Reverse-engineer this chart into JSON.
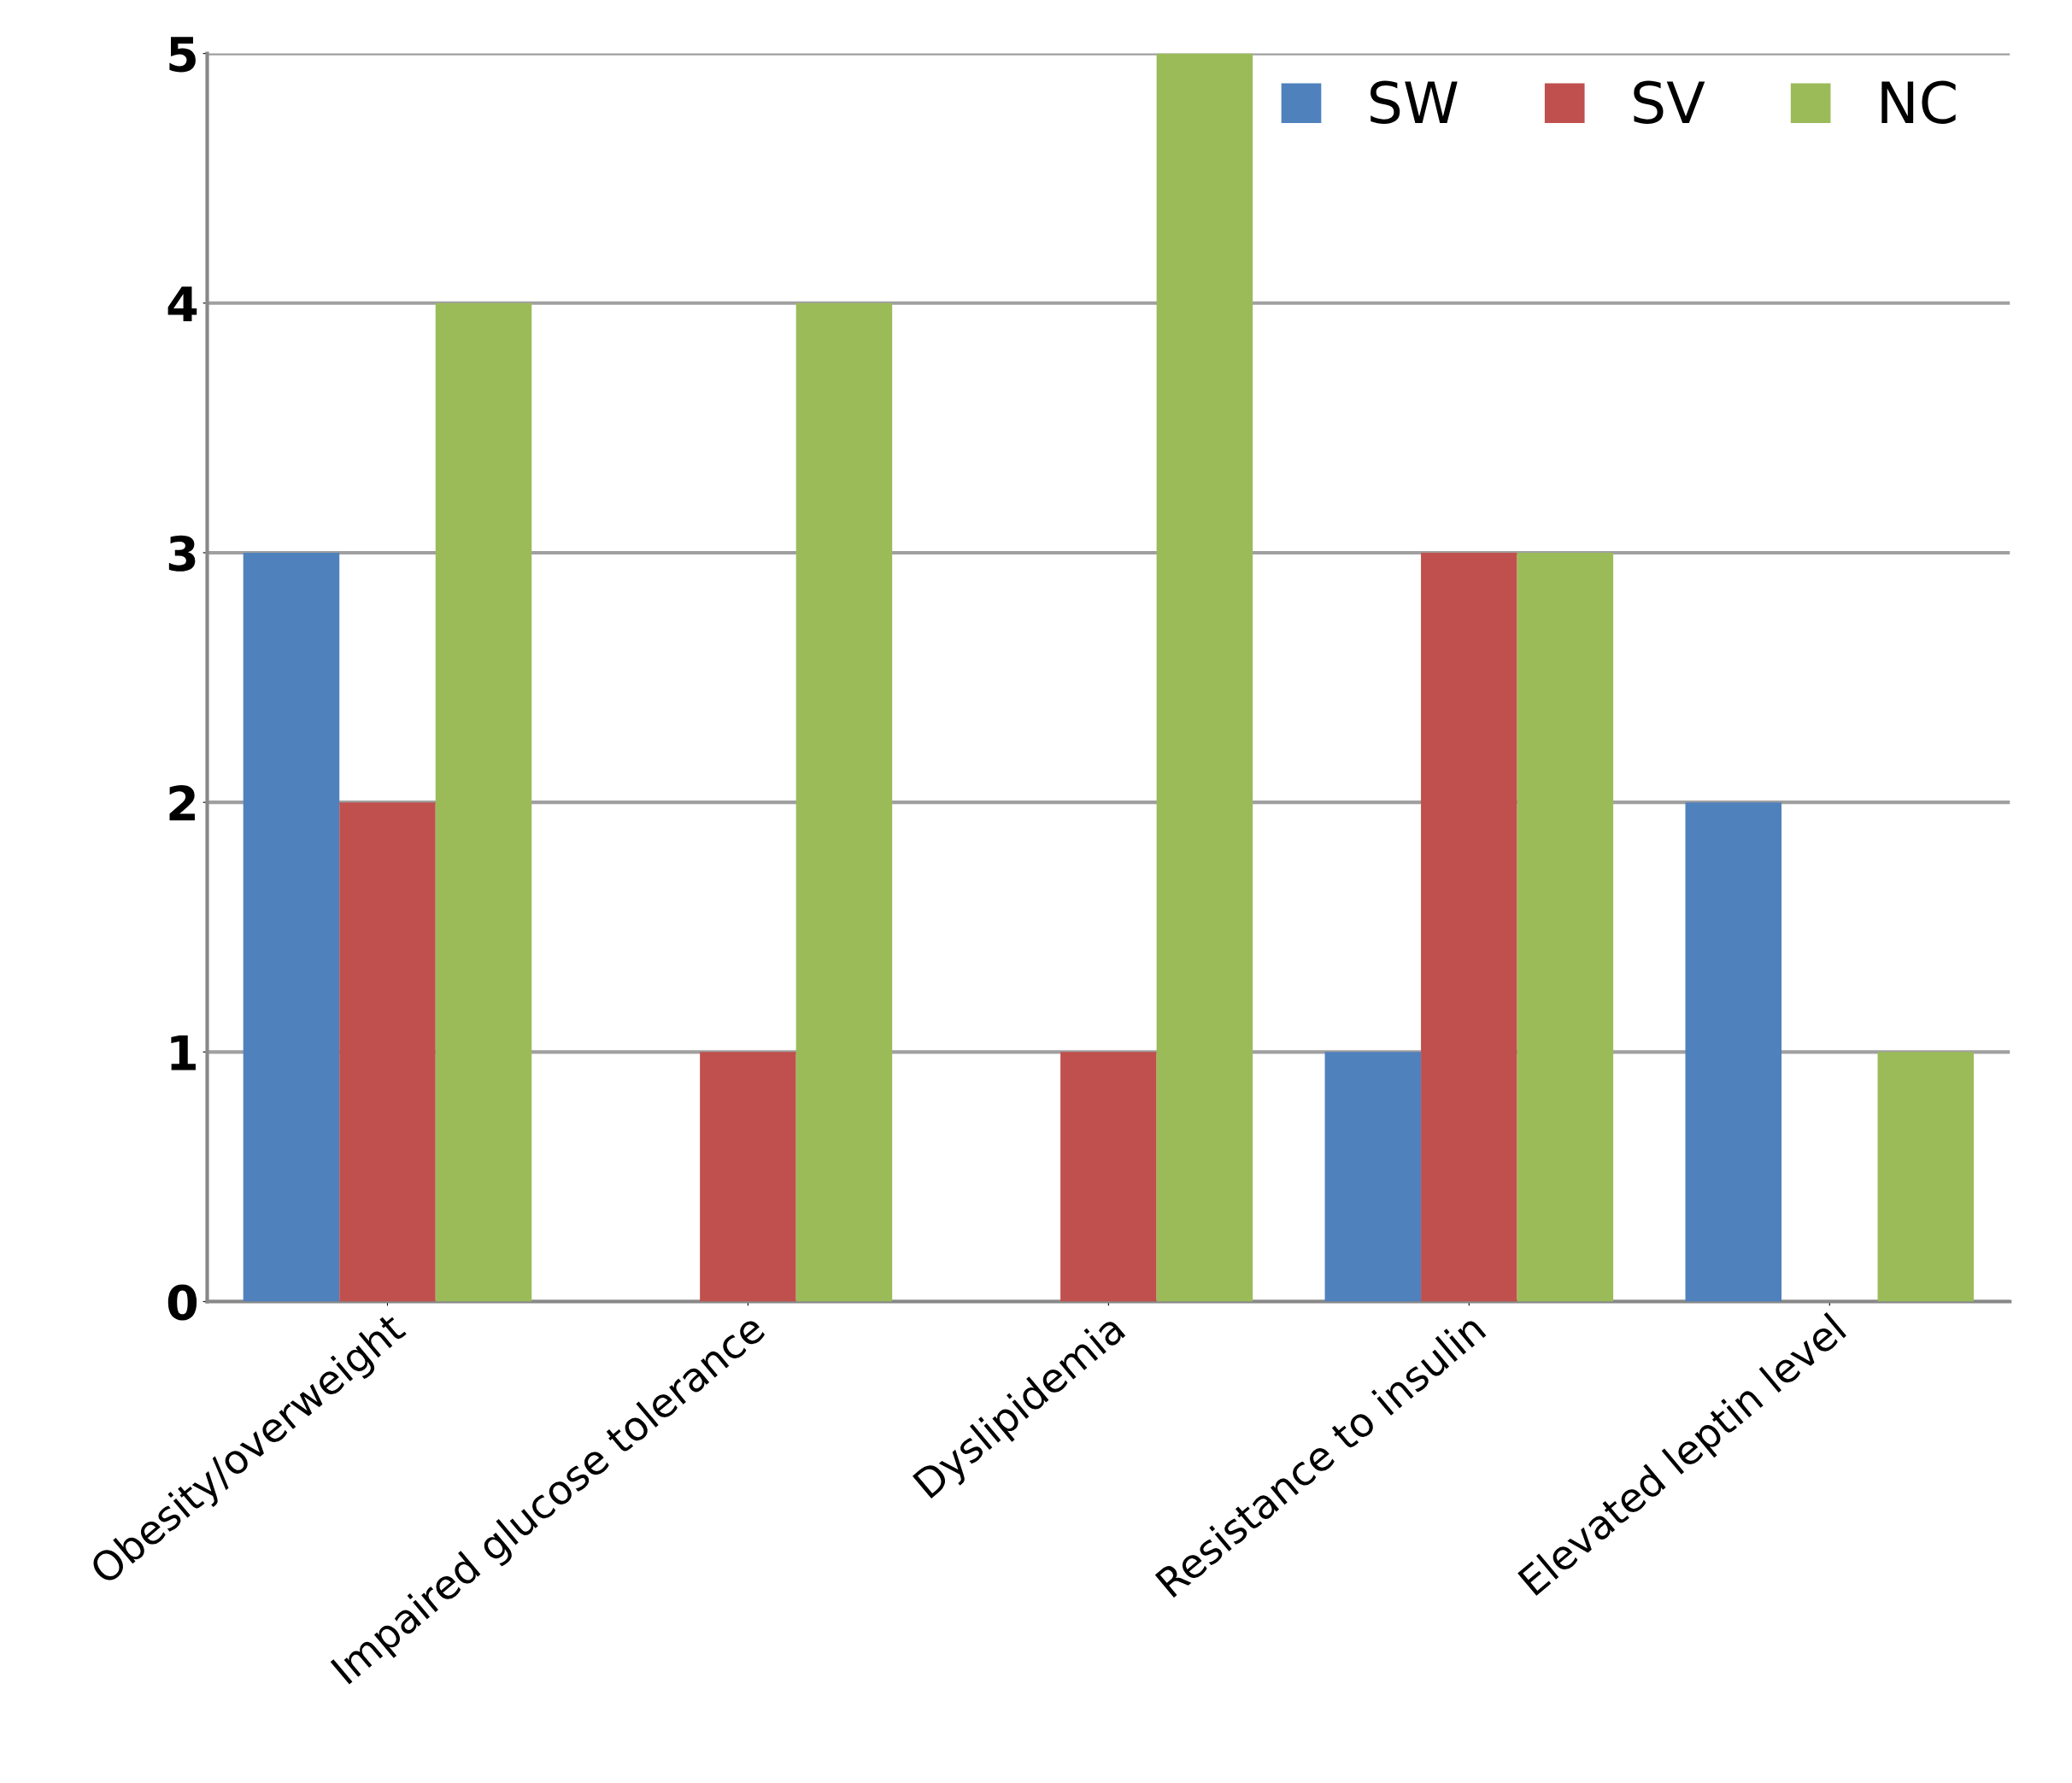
{
  "chart_data": {
    "type": "bar",
    "categories": [
      "Obesity/overweight",
      "Impaired glucose tolerance",
      "Dyslipidemia",
      "Resistance to insulin",
      "Elevated leptin level"
    ],
    "series": [
      {
        "name": "SW",
        "color": "#4f81bd",
        "values": [
          3,
          0,
          0,
          1,
          2
        ]
      },
      {
        "name": "SV",
        "color": "#c0504d",
        "values": [
          2,
          1,
          1,
          3,
          0
        ]
      },
      {
        "name": "NC",
        "color": "#9bbb59",
        "values": [
          4,
          4,
          5,
          3,
          1
        ]
      }
    ],
    "ylim": [
      0,
      5
    ],
    "yticks": [
      0,
      1,
      2,
      3,
      4,
      5
    ],
    "grid": "y",
    "legend": "top right"
  }
}
